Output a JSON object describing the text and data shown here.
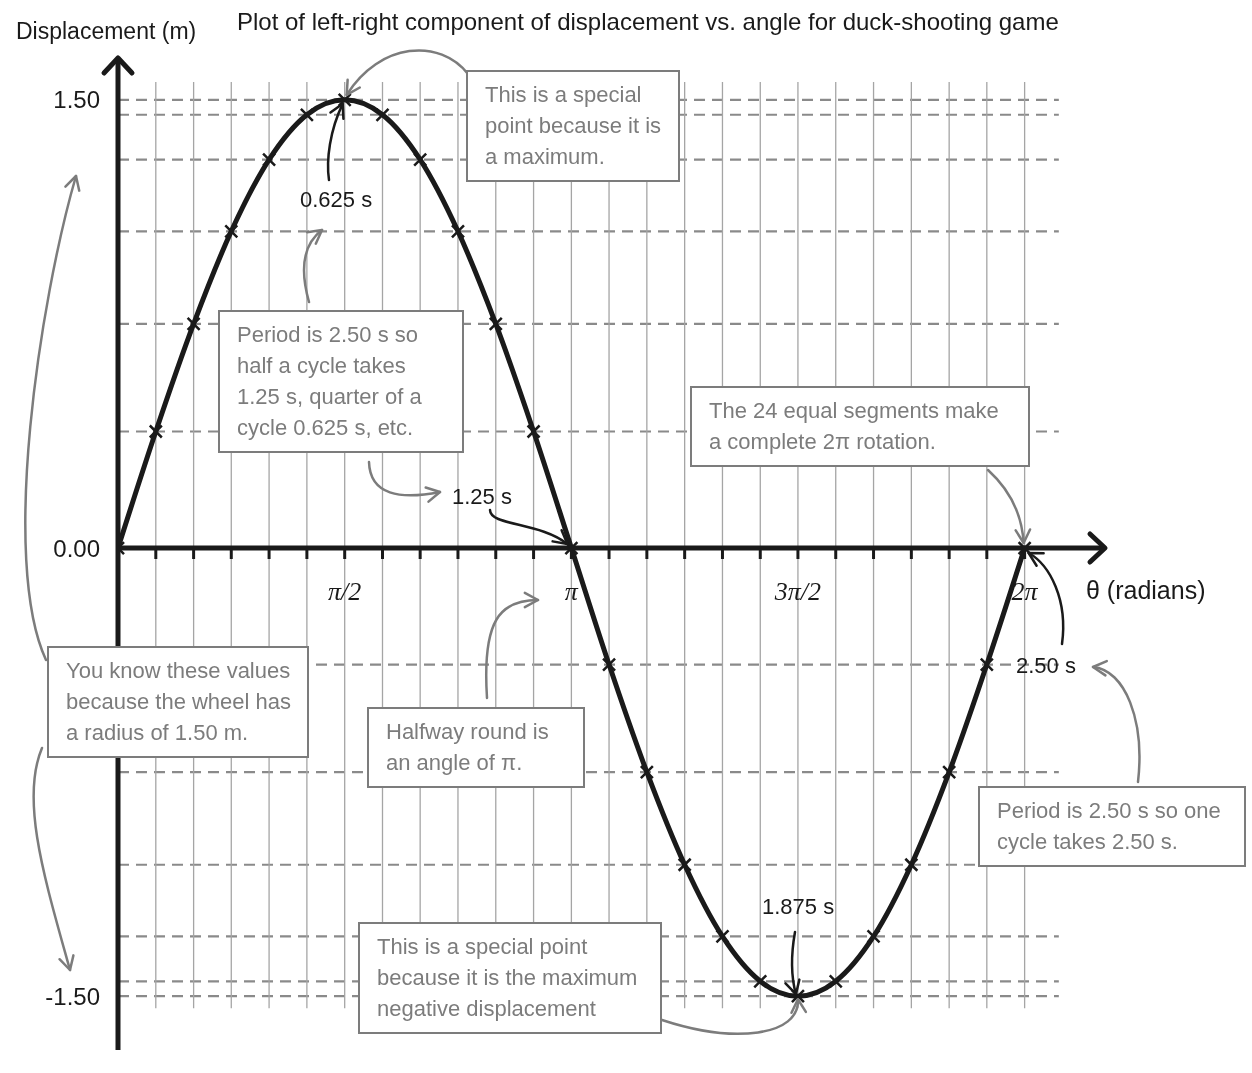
{
  "chart_data": {
    "type": "line",
    "title": "Plot of left-right component of displacement vs. angle for duck-shooting game",
    "xlabel": "θ (radians)",
    "ylabel": "Displacement (m)",
    "x": [
      0,
      0.262,
      0.524,
      0.785,
      1.047,
      1.309,
      1.571,
      1.833,
      2.094,
      2.356,
      2.618,
      2.88,
      3.142,
      3.403,
      3.665,
      3.927,
      4.189,
      4.451,
      4.712,
      4.974,
      5.236,
      5.498,
      5.76,
      6.021,
      6.283
    ],
    "values": [
      0,
      0.39,
      0.75,
      1.06,
      1.3,
      1.45,
      1.5,
      1.45,
      1.3,
      1.06,
      0.75,
      0.39,
      0,
      -0.39,
      -0.75,
      -1.06,
      -1.3,
      -1.45,
      -1.5,
      -1.45,
      -1.3,
      -1.06,
      -0.75,
      -0.39,
      0
    ],
    "color": "#1a1a1a",
    "marker": "cross",
    "line_style": "solid",
    "grid": true,
    "xlim": [
      0,
      6.84
    ],
    "ylim": [
      -1.68,
      1.64
    ],
    "xticks": [
      {
        "value": 0.262,
        "label": null
      },
      {
        "value": 0.524,
        "label": null
      },
      {
        "value": 0.785,
        "label": null
      },
      {
        "value": 1.047,
        "label": null
      },
      {
        "value": 1.309,
        "label": null
      },
      {
        "value": 1.571,
        "label": "π/2"
      },
      {
        "value": 1.833,
        "label": null
      },
      {
        "value": 2.094,
        "label": null
      },
      {
        "value": 2.356,
        "label": null
      },
      {
        "value": 2.618,
        "label": null
      },
      {
        "value": 2.88,
        "label": null
      },
      {
        "value": 3.142,
        "label": "π"
      },
      {
        "value": 3.403,
        "label": null
      },
      {
        "value": 3.665,
        "label": null
      },
      {
        "value": 3.927,
        "label": null
      },
      {
        "value": 4.189,
        "label": null
      },
      {
        "value": 4.451,
        "label": null
      },
      {
        "value": 4.712,
        "label": "3π/2"
      },
      {
        "value": 4.974,
        "label": null
      },
      {
        "value": 5.236,
        "label": null
      },
      {
        "value": 5.498,
        "label": null
      },
      {
        "value": 5.76,
        "label": null
      },
      {
        "value": 6.021,
        "label": null
      },
      {
        "value": 6.283,
        "label": "2π"
      }
    ],
    "yticks": [
      {
        "value": -1.5,
        "label": "-1.50"
      },
      {
        "value": -1.45,
        "label": null
      },
      {
        "value": -1.3,
        "label": null
      },
      {
        "value": -1.06,
        "label": null
      },
      {
        "value": -0.75,
        "label": null
      },
      {
        "value": -0.39,
        "label": null
      },
      {
        "value": 0,
        "label": "0.00"
      },
      {
        "value": 0.39,
        "label": null
      },
      {
        "value": 0.75,
        "label": null
      },
      {
        "value": 1.06,
        "label": null
      },
      {
        "value": 1.3,
        "label": null
      },
      {
        "value": 1.45,
        "label": null
      },
      {
        "value": 1.5,
        "label": "1.50"
      }
    ],
    "annotations": [
      {
        "text": "This is a special point because it is a maximum.",
        "x": 1.571,
        "y": 1.5
      },
      {
        "text": "0.625 s",
        "x": 1.571,
        "y": 1.5
      },
      "Period is 2.50 s so half a cycle takes 1.25 s, quarter of a cycle 0.625 s, etc.",
      {
        "text": "1.25 s",
        "x": 3.142,
        "y": 0
      },
      {
        "text": "The 24 equal segments make a complete 2π rotation.",
        "x": 6.283,
        "y": 0
      },
      {
        "text": "2.50 s",
        "x": 6.283,
        "y": 0
      },
      "Halfway round is an angle of π.",
      "You know these values because the wheel has a radius of 1.50 m.",
      "Period is 2.50 s so one cycle takes 2.50 s.",
      {
        "text": "1.875 s",
        "x": 4.712,
        "y": -1.5
      },
      {
        "text": "This is a special point because it is the maximum negative displacement",
        "x": 4.712,
        "y": -1.5
      }
    ]
  }
}
